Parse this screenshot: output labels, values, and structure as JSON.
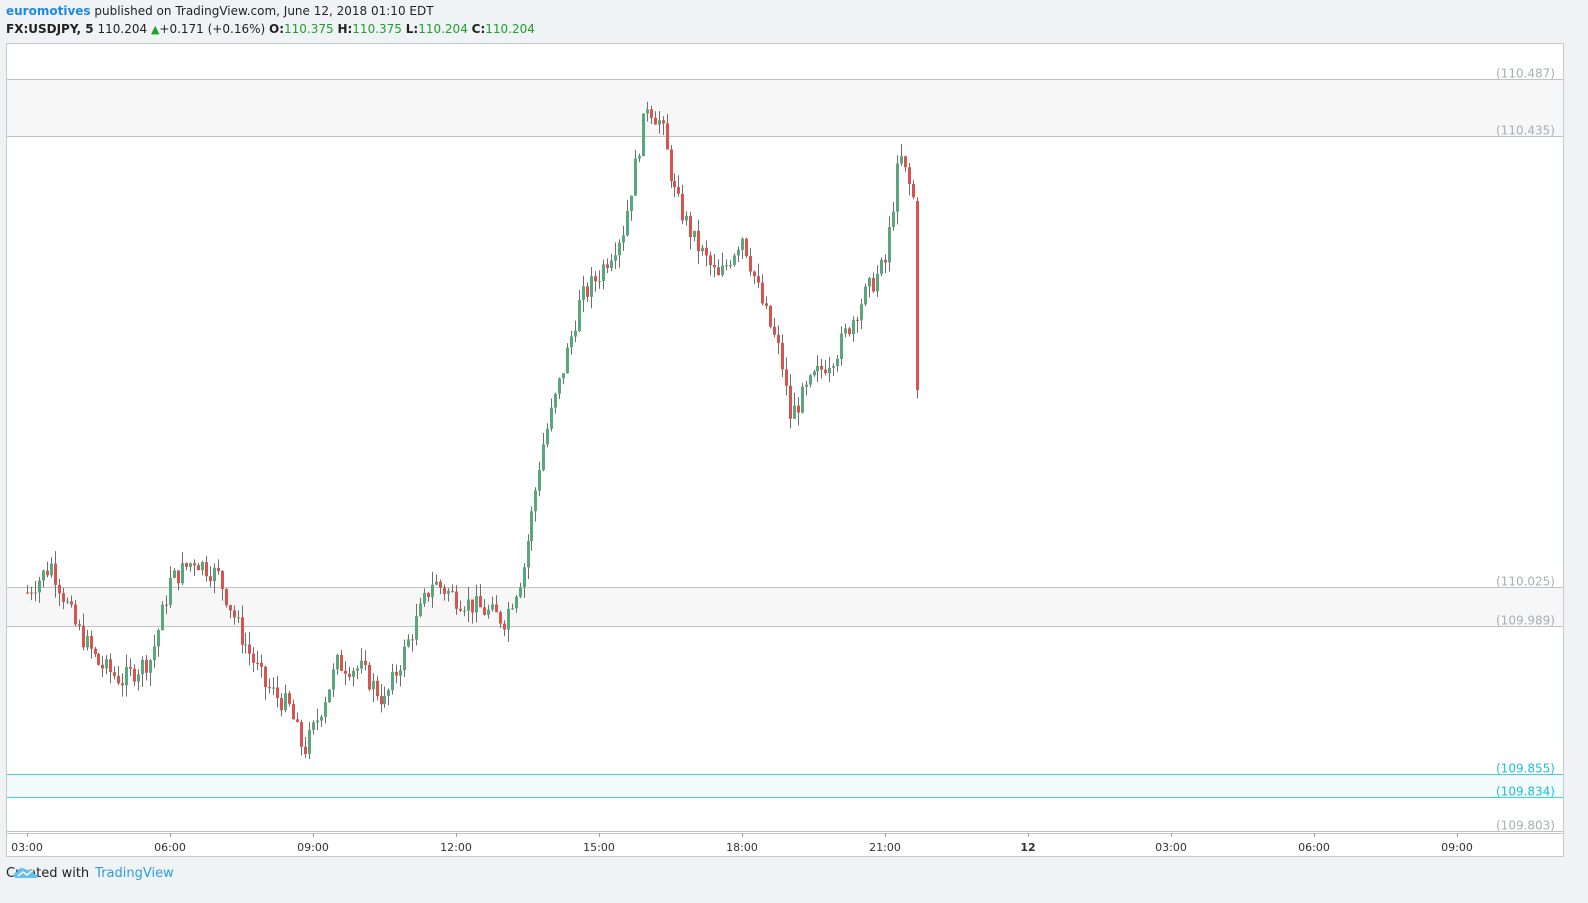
{
  "header": {
    "author": "euromotives",
    "published_text": "published on TradingView.com, June 12, 2018 01:10 EDT",
    "symbol": "FX:USDJPY, 5",
    "last": "110.204",
    "change": "+0.171 (+0.16%)",
    "o_label": "O:",
    "o_value": "110.375",
    "h_label": "H:",
    "h_value": "110.375",
    "l_label": "L:",
    "l_value": "110.204",
    "c_label": "C:",
    "c_value": "110.204"
  },
  "footer": {
    "created_with": "Created with",
    "brand": "TradingView",
    "logo_icon": "tradingview-cloud-icon"
  },
  "colors": {
    "up": "#5aa77d",
    "down": "#d9534f",
    "wick": "#6e6e6e",
    "zone_grey": "#bfc3c6",
    "zone_cyan": "#3ad7d8",
    "label_grey": "#a9afb3",
    "label_cyan": "#20c1d6",
    "zone_fill": "#f7f7f7"
  },
  "chart_data": {
    "type": "candlestick",
    "timeframe": "5",
    "x_ticks": [
      "03:00",
      "06:00",
      "09:00",
      "12:00",
      "15:00",
      "18:00",
      "21:00",
      "12",
      "03:00",
      "06:00",
      "09:00"
    ],
    "y_range": [
      109.801,
      110.519
    ],
    "grid": false,
    "levels": [
      {
        "value": 110.487,
        "label": "(110.487)",
        "style": "grey"
      },
      {
        "value": 110.435,
        "label": "(110.435)",
        "style": "grey"
      },
      {
        "value": 110.025,
        "label": "(110.025)",
        "style": "grey"
      },
      {
        "value": 109.989,
        "label": "(109.989)",
        "style": "grey"
      },
      {
        "value": 109.855,
        "label": "(109.855)",
        "style": "cyan"
      },
      {
        "value": 109.834,
        "label": "(109.834)",
        "style": "cyan"
      },
      {
        "value": 109.803,
        "label": "(109.803)",
        "style": "grey"
      }
    ],
    "zones": [
      {
        "from": 110.435,
        "to": 110.487,
        "style": "grey"
      },
      {
        "from": 109.989,
        "to": 110.025,
        "style": "grey"
      },
      {
        "from": 109.834,
        "to": 109.855,
        "style": "cyan"
      }
    ],
    "ohlc_points": [
      {
        "t": 0,
        "c": 110.02
      },
      {
        "t": 0.5,
        "c": 110.045
      },
      {
        "t": 1.0,
        "c": 109.99
      },
      {
        "t": 1.5,
        "c": 109.955
      },
      {
        "t": 2.0,
        "c": 109.94
      },
      {
        "t": 2.6,
        "c": 109.96
      },
      {
        "t": 3.0,
        "c": 110.03
      },
      {
        "t": 3.5,
        "c": 110.05
      },
      {
        "t": 4.0,
        "c": 110.035
      },
      {
        "t": 4.5,
        "c": 109.98
      },
      {
        "t": 5.0,
        "c": 109.935
      },
      {
        "t": 5.5,
        "c": 109.915
      },
      {
        "t": 5.8,
        "c": 109.875
      },
      {
        "t": 6.0,
        "c": 109.895
      },
      {
        "t": 6.5,
        "c": 109.955
      },
      {
        "t": 7.0,
        "c": 109.95
      },
      {
        "t": 7.5,
        "c": 109.92
      },
      {
        "t": 8.0,
        "c": 109.975
      },
      {
        "t": 8.5,
        "c": 110.03
      },
      {
        "t": 9.0,
        "c": 110.015
      },
      {
        "t": 9.5,
        "c": 110.005
      },
      {
        "t": 10.0,
        "c": 109.995
      },
      {
        "t": 10.4,
        "c": 110.04
      },
      {
        "t": 10.8,
        "c": 110.15
      },
      {
        "t": 11.2,
        "c": 110.215
      },
      {
        "t": 11.6,
        "c": 110.285
      },
      {
        "t": 12.0,
        "c": 110.31
      },
      {
        "t": 12.5,
        "c": 110.35
      },
      {
        "t": 13.0,
        "c": 110.465
      },
      {
        "t": 13.3,
        "c": 110.445
      },
      {
        "t": 13.6,
        "c": 110.38
      },
      {
        "t": 14.0,
        "c": 110.34
      },
      {
        "t": 14.5,
        "c": 110.305
      },
      {
        "t": 15.0,
        "c": 110.345
      },
      {
        "t": 15.4,
        "c": 110.285
      },
      {
        "t": 15.8,
        "c": 110.235
      },
      {
        "t": 16.0,
        "c": 110.18
      },
      {
        "t": 16.5,
        "c": 110.215
      },
      {
        "t": 17.0,
        "c": 110.24
      },
      {
        "t": 17.5,
        "c": 110.285
      },
      {
        "t": 18.0,
        "c": 110.32
      },
      {
        "t": 18.3,
        "c": 110.418
      },
      {
        "t": 18.6,
        "c": 110.376
      },
      {
        "t": 18.7,
        "c": 110.204
      }
    ]
  }
}
